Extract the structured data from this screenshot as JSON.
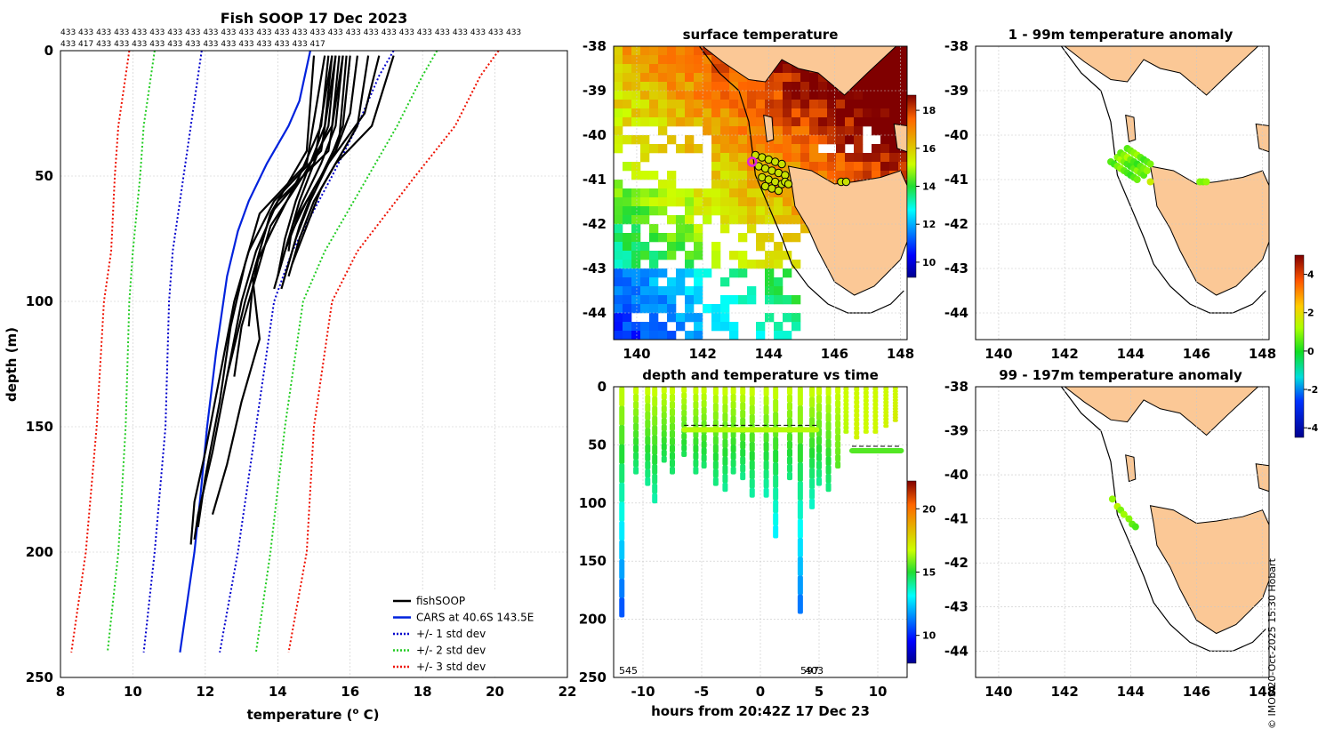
{
  "colors": {
    "profile": "#000000",
    "cars": "#0022dd",
    "std1": "#0000cc",
    "std2": "#22cc22",
    "std3": "#ee1100",
    "land": "#fbc896",
    "coast": "#000000",
    "grid": "#c8c8c8",
    "marker_fill": "#c8e000",
    "highlight": "#e020e0"
  },
  "stamp": "© IMOS 20-Oct-2025 15:30 Hobart",
  "chart_data": [
    {
      "id": "profile",
      "type": "line",
      "title": "Fish SOOP 17 Dec 2023",
      "header_row1": "433 433 433 433 433 433 433 433 433 433 433 433 433 433 433 433 433 433 433 433 433 433 433 433 433 433",
      "header_row2": "433 417 433 433 433 433 433 433 433 433 433 433 433 433 417",
      "xlabel": "temperature (",
      "xlabel_sup": "o",
      "xlabel_tail": " C)",
      "ylabel": "depth (m)",
      "xlim": [
        8,
        22
      ],
      "ylim": [
        0,
        250
      ],
      "xticks": [
        8,
        10,
        12,
        14,
        16,
        18,
        20,
        22
      ],
      "yticks": [
        0,
        50,
        100,
        150,
        200,
        250
      ],
      "legend": [
        {
          "label": "fishSOOP",
          "style": "solid",
          "key": "profile"
        },
        {
          "label": "CARS at 40.6S 143.5E",
          "style": "solid",
          "key": "cars"
        },
        {
          "label": "+/- 1 std dev",
          "style": "dotted",
          "key": "std1"
        },
        {
          "label": "+/- 2 std dev",
          "style": "dotted",
          "key": "std2"
        },
        {
          "label": "+/- 3 std dev",
          "style": "dotted",
          "key": "std3"
        }
      ],
      "legend_position": "bottom-right",
      "cars": {
        "depth": [
          0,
          20,
          30,
          45,
          60,
          72,
          90,
          120,
          150,
          180,
          200,
          220,
          240
        ],
        "temp": [
          14.9,
          14.6,
          14.3,
          13.7,
          13.2,
          12.9,
          12.6,
          12.3,
          12.05,
          11.85,
          11.7,
          11.5,
          11.3
        ]
      },
      "std": [
        {
          "key": "std1",
          "depth": [
            0,
            10,
            30,
            50,
            80,
            100,
            150,
            200,
            240
          ],
          "minus": [
            11.9,
            11.8,
            11.6,
            11.4,
            11.1,
            11.0,
            10.9,
            10.6,
            10.3
          ],
          "plus": [
            17.2,
            16.8,
            16.2,
            15.5,
            14.4,
            13.9,
            13.4,
            12.9,
            12.4
          ]
        },
        {
          "key": "std2",
          "depth": [
            0,
            10,
            30,
            50,
            80,
            100,
            150,
            200,
            240
          ],
          "minus": [
            10.6,
            10.5,
            10.3,
            10.2,
            10.0,
            9.9,
            9.8,
            9.6,
            9.3
          ],
          "plus": [
            18.4,
            18.0,
            17.3,
            16.5,
            15.3,
            14.7,
            14.2,
            13.8,
            13.4
          ]
        },
        {
          "key": "std3",
          "depth": [
            0,
            10,
            30,
            50,
            80,
            100,
            150,
            200,
            240
          ],
          "minus": [
            9.9,
            9.8,
            9.6,
            9.5,
            9.4,
            9.2,
            9.0,
            8.7,
            8.3
          ],
          "plus": [
            20.1,
            19.6,
            18.9,
            17.8,
            16.2,
            15.5,
            15.0,
            14.8,
            14.3
          ]
        }
      ],
      "fishsoop": [
        {
          "depth": [
            2,
            30,
            45,
            60,
            70,
            80
          ],
          "temp": [
            15.8,
            15.6,
            15.2,
            14.7,
            14.4,
            14.2
          ]
        },
        {
          "depth": [
            2,
            30,
            45,
            60,
            75,
            90
          ],
          "temp": [
            16.0,
            15.8,
            15.4,
            14.8,
            14.3,
            14.0
          ]
        },
        {
          "depth": [
            2,
            25,
            40,
            55,
            70,
            85,
            95
          ],
          "temp": [
            16.2,
            16.0,
            15.6,
            15.0,
            14.6,
            14.3,
            14.1
          ]
        },
        {
          "depth": [
            2,
            30,
            45,
            60,
            75,
            90
          ],
          "temp": [
            15.5,
            15.3,
            14.9,
            14.5,
            14.2,
            14.0
          ]
        },
        {
          "depth": [
            2,
            30,
            40,
            55,
            70,
            85
          ],
          "temp": [
            16.5,
            16.2,
            15.8,
            15.2,
            14.8,
            14.4
          ]
        },
        {
          "depth": [
            2,
            35,
            50,
            65,
            80,
            95
          ],
          "temp": [
            15.9,
            15.7,
            15.2,
            14.6,
            14.2,
            13.9
          ]
        },
        {
          "depth": [
            2,
            25,
            45,
            60,
            75,
            90
          ],
          "temp": [
            16.8,
            16.4,
            15.4,
            14.9,
            14.5,
            14.2
          ]
        },
        {
          "depth": [
            2,
            30,
            45,
            60,
            70,
            80
          ],
          "temp": [
            15.6,
            15.4,
            15.0,
            14.6,
            14.4,
            14.3
          ]
        },
        {
          "depth": [
            2,
            30,
            50,
            70,
            85,
            100,
            130
          ],
          "temp": [
            15.4,
            15.2,
            14.6,
            13.9,
            13.4,
            13.1,
            12.6
          ]
        },
        {
          "depth": [
            2,
            30,
            50,
            70,
            90,
            110,
            130
          ],
          "temp": [
            15.7,
            15.5,
            14.7,
            13.8,
            13.4,
            13.0,
            12.8
          ]
        },
        {
          "depth": [
            2,
            40,
            60,
            80,
            100,
            130,
            160,
            185,
            195
          ],
          "temp": [
            15.8,
            15.4,
            14.0,
            13.4,
            13.0,
            12.6,
            12.2,
            11.8,
            11.7
          ]
        },
        {
          "depth": [
            2,
            40,
            60,
            80,
            100,
            130,
            160,
            180,
            197
          ],
          "temp": [
            15.6,
            15.2,
            13.9,
            13.2,
            12.8,
            12.4,
            12.0,
            11.7,
            11.6
          ]
        },
        {
          "depth": [
            2,
            45,
            65,
            85,
            110,
            140,
            170,
            190
          ],
          "temp": [
            15.3,
            14.8,
            13.5,
            13.1,
            12.7,
            12.4,
            12.0,
            11.8
          ]
        },
        {
          "depth": [
            2,
            45,
            65,
            90,
            115,
            140,
            165,
            185
          ],
          "temp": [
            15.5,
            15.0,
            13.8,
            13.3,
            13.5,
            13.0,
            12.6,
            12.2
          ]
        },
        {
          "depth": [
            2,
            40,
            55,
            65,
            80,
            95,
            110
          ],
          "temp": [
            15.0,
            14.8,
            14.2,
            13.8,
            13.5,
            13.3,
            13.2
          ]
        },
        {
          "depth": [
            2,
            30,
            45,
            60,
            75,
            90
          ],
          "temp": [
            17.2,
            16.6,
            15.6,
            15.0,
            14.6,
            14.3
          ]
        }
      ]
    },
    {
      "id": "sst",
      "type": "heatmap",
      "title": "surface temperature",
      "xlim": [
        139.3,
        148.2
      ],
      "ylim": [
        -44.6,
        -38
      ],
      "xticks": [
        140,
        142,
        144,
        146,
        148
      ],
      "yticks": [
        -38,
        -39,
        -40,
        -41,
        -42,
        -43,
        -44
      ],
      "colorbar": {
        "min": 9.2,
        "max": 18.8,
        "ticks": [
          10,
          12,
          14,
          16,
          18
        ]
      },
      "deployments": {
        "lon": [
          143.6,
          143.8,
          144.0,
          144.2,
          144.4,
          143.7,
          143.9,
          144.1,
          144.3,
          144.5,
          143.8,
          144.0,
          144.2,
          144.4,
          143.9,
          144.1,
          144.3,
          144.5,
          144.6,
          146.2,
          146.35
        ],
        "lat": [
          -40.45,
          -40.5,
          -40.55,
          -40.6,
          -40.65,
          -40.7,
          -40.75,
          -40.8,
          -40.85,
          -40.9,
          -40.95,
          -41.0,
          -41.05,
          -41.1,
          -41.15,
          -41.2,
          -41.25,
          -41.05,
          -41.1,
          -41.05,
          -41.05
        ]
      },
      "latest": {
        "lon": 143.5,
        "lat": -40.6
      }
    },
    {
      "id": "timeseries",
      "type": "scatter",
      "title": "depth and temperature vs time",
      "xlabel": "hours from 20:42Z 17 Dec 23",
      "xlim": [
        -12.5,
        12.5
      ],
      "ylim": [
        0,
        250
      ],
      "xticks": [
        -10,
        -5,
        0,
        5,
        10
      ],
      "yticks": [
        0,
        50,
        100,
        150,
        200,
        250
      ],
      "colorbar": {
        "min": 7.8,
        "max": 22.2,
        "ticks": [
          10,
          15,
          20
        ]
      },
      "annotations": [
        "545",
        "597",
        "403"
      ],
      "casts": [
        {
          "t": -11.8,
          "maxd": 198,
          "tb": 10.5
        },
        {
          "t": -10.6,
          "maxd": 75,
          "tb": 14.2
        },
        {
          "t": -9.6,
          "maxd": 85,
          "tb": 14.0
        },
        {
          "t": -9.0,
          "maxd": 100,
          "tb": 13.8
        },
        {
          "t": -8.2,
          "maxd": 65,
          "tb": 14.5
        },
        {
          "t": -7.5,
          "maxd": 75,
          "tb": 14.4
        },
        {
          "t": -6.5,
          "maxd": 60,
          "tb": 14.6
        },
        {
          "t": -5.5,
          "maxd": 75,
          "tb": 14.3
        },
        {
          "t": -4.8,
          "maxd": 70,
          "tb": 14.4
        },
        {
          "t": -3.8,
          "maxd": 85,
          "tb": 14.2
        },
        {
          "t": -3.0,
          "maxd": 90,
          "tb": 14.0
        },
        {
          "t": -2.3,
          "maxd": 75,
          "tb": 14.3
        },
        {
          "t": -1.5,
          "maxd": 80,
          "tb": 14.1
        },
        {
          "t": -0.7,
          "maxd": 95,
          "tb": 13.9
        },
        {
          "t": 0.5,
          "maxd": 95,
          "tb": 13.7
        },
        {
          "t": 1.3,
          "maxd": 130,
          "tb": 12.8
        },
        {
          "t": 2.5,
          "maxd": 80,
          "tb": 14.2
        },
        {
          "t": 3.4,
          "maxd": 195,
          "tb": 11.0
        },
        {
          "t": 4.4,
          "maxd": 105,
          "tb": 13.5
        },
        {
          "t": 5.0,
          "maxd": 85,
          "tb": 14.0
        },
        {
          "t": 5.8,
          "maxd": 90,
          "tb": 14.2
        },
        {
          "t": 6.6,
          "maxd": 70,
          "tb": 15.5
        },
        {
          "t": 7.3,
          "maxd": 40,
          "tb": 16.5
        },
        {
          "t": 8.2,
          "maxd": 45,
          "tb": 17.0
        },
        {
          "t": 9.0,
          "maxd": 40,
          "tb": 16.8
        },
        {
          "t": 9.8,
          "maxd": 40,
          "tb": 16.9
        },
        {
          "t": 10.7,
          "maxd": 35,
          "tb": 17.0
        },
        {
          "t": 11.5,
          "maxd": 30,
          "tb": 17.2
        }
      ],
      "tows": [
        {
          "t0": -6.5,
          "t1": 4.8,
          "d": 37,
          "temp": 16.5
        },
        {
          "t0": 7.8,
          "t1": 12.0,
          "d": 55,
          "temp": 15.5
        }
      ]
    },
    {
      "id": "anom_upper",
      "type": "scatter",
      "title": "1 - 99m temperature anomaly",
      "xlim": [
        139.3,
        148.2
      ],
      "ylim": [
        -44.6,
        -38
      ],
      "xticks": [
        140,
        142,
        144,
        146,
        148
      ],
      "yticks": [
        -38,
        -39,
        -40,
        -41,
        -42,
        -43,
        -44
      ],
      "colorbar": {
        "min": -4.5,
        "max": 5.0,
        "ticks": [
          -4,
          -2,
          0,
          2,
          4
        ]
      },
      "points": {
        "lon": [
          143.4,
          143.5,
          143.6,
          143.7,
          143.8,
          143.9,
          144.0,
          144.1,
          144.2,
          143.6,
          143.7,
          143.8,
          143.9,
          144.0,
          144.1,
          144.2,
          144.3,
          144.4,
          143.7,
          143.8,
          143.9,
          144.0,
          144.1,
          144.2,
          144.3,
          144.4,
          144.5,
          143.9,
          144.0,
          144.1,
          144.2,
          144.3,
          144.4,
          144.5,
          144.6,
          144.6,
          146.1,
          146.2,
          146.3
        ],
        "lat": [
          -40.6,
          -40.65,
          -40.7,
          -40.75,
          -40.8,
          -40.85,
          -40.9,
          -40.95,
          -41.0,
          -40.5,
          -40.55,
          -40.6,
          -40.65,
          -40.7,
          -40.75,
          -40.8,
          -40.85,
          -40.9,
          -40.4,
          -40.45,
          -40.5,
          -40.55,
          -40.6,
          -40.65,
          -40.7,
          -40.75,
          -40.8,
          -40.3,
          -40.35,
          -40.4,
          -40.45,
          -40.5,
          -40.55,
          -40.6,
          -40.65,
          -41.05,
          -41.05,
          -41.05,
          -41.05
        ],
        "value": [
          0.5,
          0.3,
          0.8,
          1.0,
          0.6,
          0.4,
          0.2,
          0.5,
          0.7,
          0.9,
          1.2,
          0.8,
          0.4,
          0.3,
          0.6,
          1.0,
          0.7,
          0.5,
          0.6,
          0.9,
          1.3,
          0.7,
          0.4,
          0.2,
          0.6,
          0.8,
          1.0,
          0.5,
          0.7,
          0.9,
          1.1,
          0.6,
          0.3,
          0.5,
          0.8,
          1.6,
          0.9,
          0.8,
          1.0
        ]
      }
    },
    {
      "id": "anom_lower",
      "type": "scatter",
      "title": "99 - 197m temperature anomaly",
      "xlim": [
        139.3,
        148.2
      ],
      "ylim": [
        -44.6,
        -38
      ],
      "xticks": [
        140,
        142,
        144,
        146,
        148
      ],
      "yticks": [
        -38,
        -39,
        -40,
        -41,
        -42,
        -43,
        -44
      ],
      "colorbar": {
        "min": -4.5,
        "max": 5.0,
        "ticks": [
          -4,
          -2,
          0,
          2,
          4
        ]
      },
      "points": {
        "lon": [
          143.45,
          143.6,
          143.7,
          143.8,
          143.95,
          144.05,
          144.15
        ],
        "lat": [
          -40.55,
          -40.72,
          -40.8,
          -40.9,
          -41.0,
          -41.12,
          -41.18
        ],
        "value": [
          1.0,
          1.4,
          0.8,
          1.1,
          0.9,
          0.6,
          0.4
        ]
      }
    }
  ]
}
